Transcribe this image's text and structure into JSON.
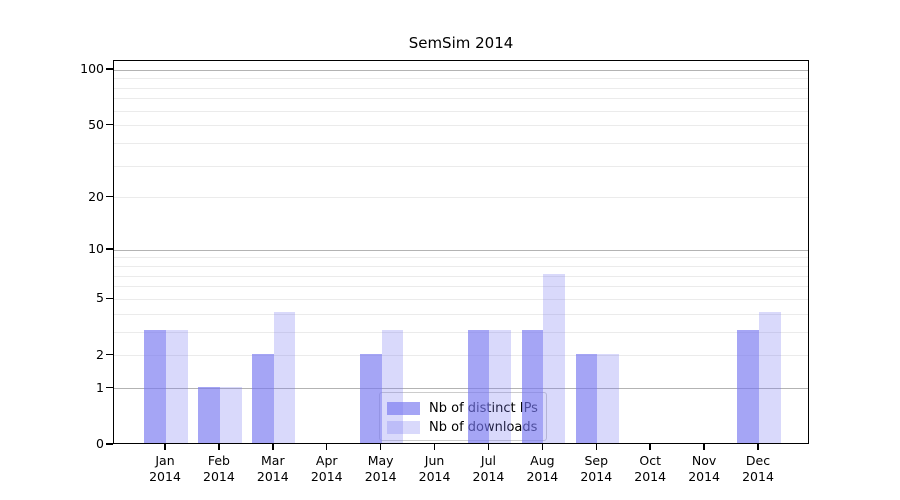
{
  "title": "SemSim 2014",
  "colors": {
    "background": "#ffffff",
    "spine": "#000000",
    "text": "#000000",
    "bar_dark": "rgba(118,118,240,0.66)",
    "bar_light": "rgba(118,118,240,0.28)",
    "grid_major": "#b3b3b3",
    "grid_minor": "#ebebeb",
    "legend_border": "#cccccc"
  },
  "chart_data": {
    "type": "bar",
    "title": "SemSim 2014",
    "xlabel": "",
    "ylabel": "",
    "categories": [
      "Jan 2014",
      "Feb 2014",
      "Mar 2014",
      "Apr 2014",
      "May 2014",
      "Jun 2014",
      "Jul 2014",
      "Aug 2014",
      "Sep 2014",
      "Oct 2014",
      "Nov 2014",
      "Dec 2014"
    ],
    "series": [
      {
        "name": "Nb of distinct IPs",
        "color": "rgba(118,118,240,0.66)",
        "values": [
          3,
          1,
          2,
          0,
          2,
          0,
          3,
          3,
          2,
          0,
          0,
          3
        ]
      },
      {
        "name": "Nb of downloads",
        "color": "rgba(118,118,240,0.28)",
        "values": [
          3,
          1,
          4,
          0,
          3,
          0,
          3,
          7,
          2,
          0,
          0,
          4
        ]
      }
    ],
    "y_scale": "log1p",
    "ylim": [
      0,
      112
    ],
    "y_ticks": [
      {
        "value": 0,
        "label": "0"
      },
      {
        "value": 1,
        "label": "1"
      },
      {
        "value": 2,
        "label": "2"
      },
      {
        "value": 5,
        "label": "5"
      },
      {
        "value": 10,
        "label": "10"
      },
      {
        "value": 20,
        "label": "20"
      },
      {
        "value": 50,
        "label": "50"
      },
      {
        "value": 100,
        "label": "100"
      }
    ],
    "grid": {
      "major_values": [
        1,
        10,
        100
      ],
      "minor_values": [
        2,
        3,
        4,
        5,
        6,
        7,
        8,
        9,
        20,
        30,
        40,
        50,
        60,
        70,
        80,
        90
      ],
      "major_color": "#b3b3b3",
      "minor_color": "#ebebeb"
    },
    "legend": {
      "position": "lower-center",
      "entries": [
        "Nb of distinct IPs",
        "Nb of downloads"
      ]
    }
  }
}
